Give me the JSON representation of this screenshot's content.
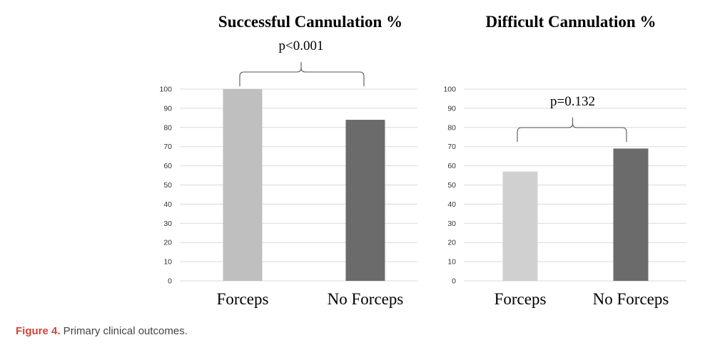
{
  "chart_data": [
    {
      "type": "bar",
      "title": "Successful Cannulation %",
      "categories": [
        "Forceps",
        "No Forceps"
      ],
      "values": [
        100,
        84
      ],
      "colors": [
        "#bfbfbf",
        "#6b6b6b"
      ],
      "ylim": [
        0,
        100
      ],
      "yticks": [
        "0",
        "10",
        "20",
        "30",
        "40",
        "50",
        "60",
        "70",
        "80",
        "90",
        "100"
      ],
      "grid": true,
      "annotation": "p<0.001"
    },
    {
      "type": "bar",
      "title": "Difficult Cannulation %",
      "categories": [
        "Forceps",
        "No Forceps"
      ],
      "values": [
        57,
        69
      ],
      "colors": [
        "#d0d0d0",
        "#6b6b6b"
      ],
      "ylim": [
        0,
        100
      ],
      "yticks": [
        "0",
        "10",
        "20",
        "30",
        "40",
        "50",
        "60",
        "70",
        "80",
        "90",
        "100"
      ],
      "grid": true,
      "annotation": "p=0.132"
    }
  ],
  "caption": {
    "label": "Figure 4.",
    "text": " Primary clinical outcomes."
  }
}
